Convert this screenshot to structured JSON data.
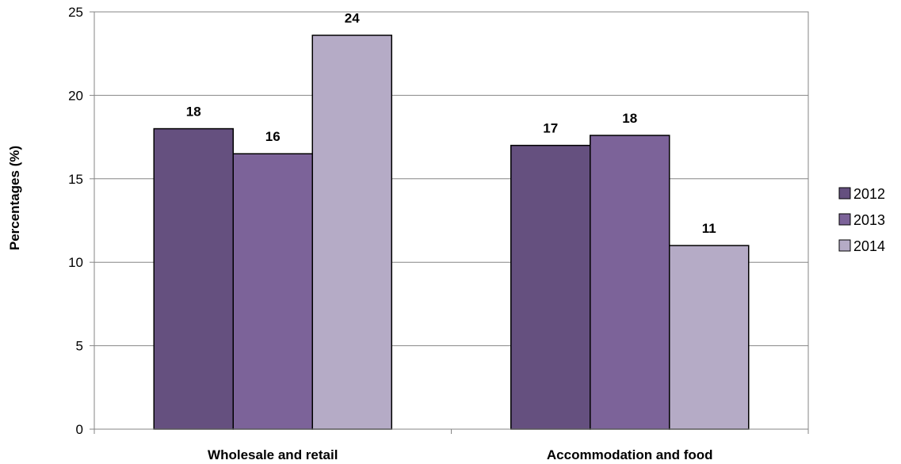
{
  "chart_data": {
    "type": "bar",
    "categories": [
      "Wholesale and retail",
      "Accommodation and food"
    ],
    "series": [
      {
        "name": "2012",
        "values": [
          18,
          17
        ],
        "labels": [
          "18",
          "17"
        ],
        "color": "#65507f"
      },
      {
        "name": "2013",
        "values": [
          16.5,
          17.6
        ],
        "labels": [
          "16",
          "18"
        ],
        "color": "#7c6399"
      },
      {
        "name": "2014",
        "values": [
          23.6,
          11
        ],
        "labels": [
          "24",
          "11"
        ],
        "color": "#b5abc6"
      }
    ],
    "ylabel": "Percentages (%)",
    "xlabel": "",
    "ylim": [
      0,
      25
    ],
    "yticks": [
      0,
      5,
      10,
      15,
      20,
      25
    ],
    "grid": true,
    "legend_position": "right"
  }
}
